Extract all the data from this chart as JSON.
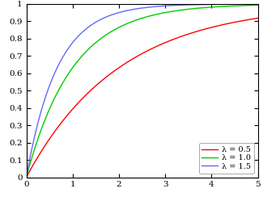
{
  "title": "",
  "xlabel": "",
  "ylabel": "",
  "xlim": [
    0,
    5
  ],
  "ylim": [
    0,
    1
  ],
  "xticks": [
    0,
    1,
    2,
    3,
    4,
    5
  ],
  "yticks": [
    0,
    0.1,
    0.2,
    0.3,
    0.4,
    0.5,
    0.6,
    0.7,
    0.8,
    0.9,
    1
  ],
  "lambdas": [
    0.5,
    1.0,
    1.5
  ],
  "colors": [
    "#ff0000",
    "#00cc00",
    "#6666ff"
  ],
  "labels": [
    "λ = 0.5",
    "λ = 1.0",
    "λ = 1.5"
  ],
  "background_color": "#ffffff",
  "line_width": 1.0,
  "legend_fontsize": 7,
  "tick_fontsize": 7.5
}
